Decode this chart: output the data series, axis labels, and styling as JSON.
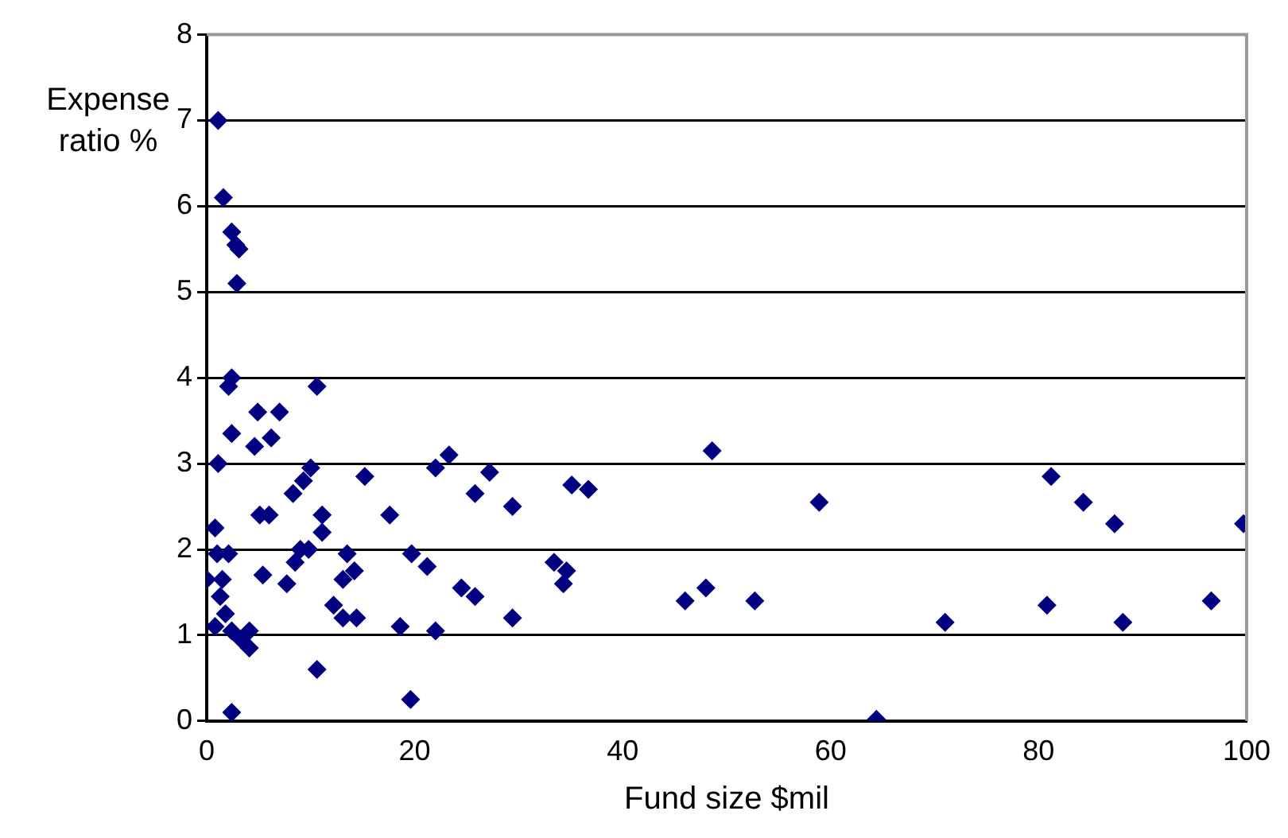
{
  "chart_data": {
    "type": "scatter",
    "xlabel": "Fund size $mil",
    "ylabel": "Expense ratio %",
    "marker": "diamond",
    "grid": "y",
    "xlim": [
      0,
      100
    ],
    "xticks": [
      0,
      20,
      40,
      60,
      80,
      100
    ],
    "ylim": [
      0,
      8
    ],
    "yticks": [
      0,
      1,
      2,
      3,
      4,
      5,
      6,
      7,
      8
    ],
    "series": [
      {
        "color": "#000080",
        "x": [
          1.1,
          1.6,
          2.4,
          2.8,
          3.1,
          2.9,
          2.4,
          2.1,
          10.6,
          4.9,
          7.0,
          2.4,
          4.6,
          6.2,
          1.1,
          10.0,
          9.3,
          15.2,
          8.3,
          5.1,
          6.0,
          11.1,
          17.6,
          0.8,
          11.1,
          1.0,
          2.1,
          0,
          1.5,
          5.4,
          9.0,
          8.5,
          7.7,
          9.8,
          13.5,
          13.1,
          14.2,
          1.3,
          1.8,
          2.4,
          3.3,
          4.1,
          4.1,
          0.8,
          12.2,
          13.1,
          14.4,
          10.6,
          2.4,
          18.6,
          19.6,
          22.0,
          23.3,
          27.2,
          25.8,
          29.4,
          35.1,
          36.7,
          48.6,
          19.7,
          21.2,
          24.5,
          25.8,
          33.4,
          34.6,
          34.3,
          29.4,
          22.0,
          46.0,
          48.0,
          58.9,
          52.7,
          64.4,
          71.0,
          81.2,
          84.3,
          87.3,
          99.7,
          80.8,
          88.1,
          96.6
        ],
        "values": [
          7.0,
          6.1,
          5.7,
          5.55,
          5.5,
          5.1,
          4.0,
          3.9,
          3.9,
          3.6,
          3.6,
          3.35,
          3.2,
          3.3,
          3.0,
          2.95,
          2.8,
          2.85,
          2.65,
          2.4,
          2.4,
          2.4,
          2.4,
          2.25,
          2.2,
          1.95,
          1.95,
          1.65,
          1.65,
          1.7,
          2.0,
          1.85,
          1.6,
          2.0,
          1.95,
          1.65,
          1.75,
          1.45,
          1.25,
          1.05,
          0.95,
          1.05,
          0.85,
          1.1,
          1.35,
          1.2,
          1.2,
          0.6,
          0.1,
          1.1,
          0.25,
          2.95,
          3.1,
          2.9,
          2.65,
          2.5,
          2.75,
          2.7,
          3.15,
          1.95,
          1.8,
          1.55,
          1.45,
          1.85,
          1.75,
          1.6,
          1.2,
          1.05,
          1.4,
          1.55,
          2.55,
          1.4,
          0.02,
          1.15,
          2.85,
          2.55,
          2.3,
          2.3,
          1.35,
          1.15,
          1.4
        ]
      }
    ]
  }
}
